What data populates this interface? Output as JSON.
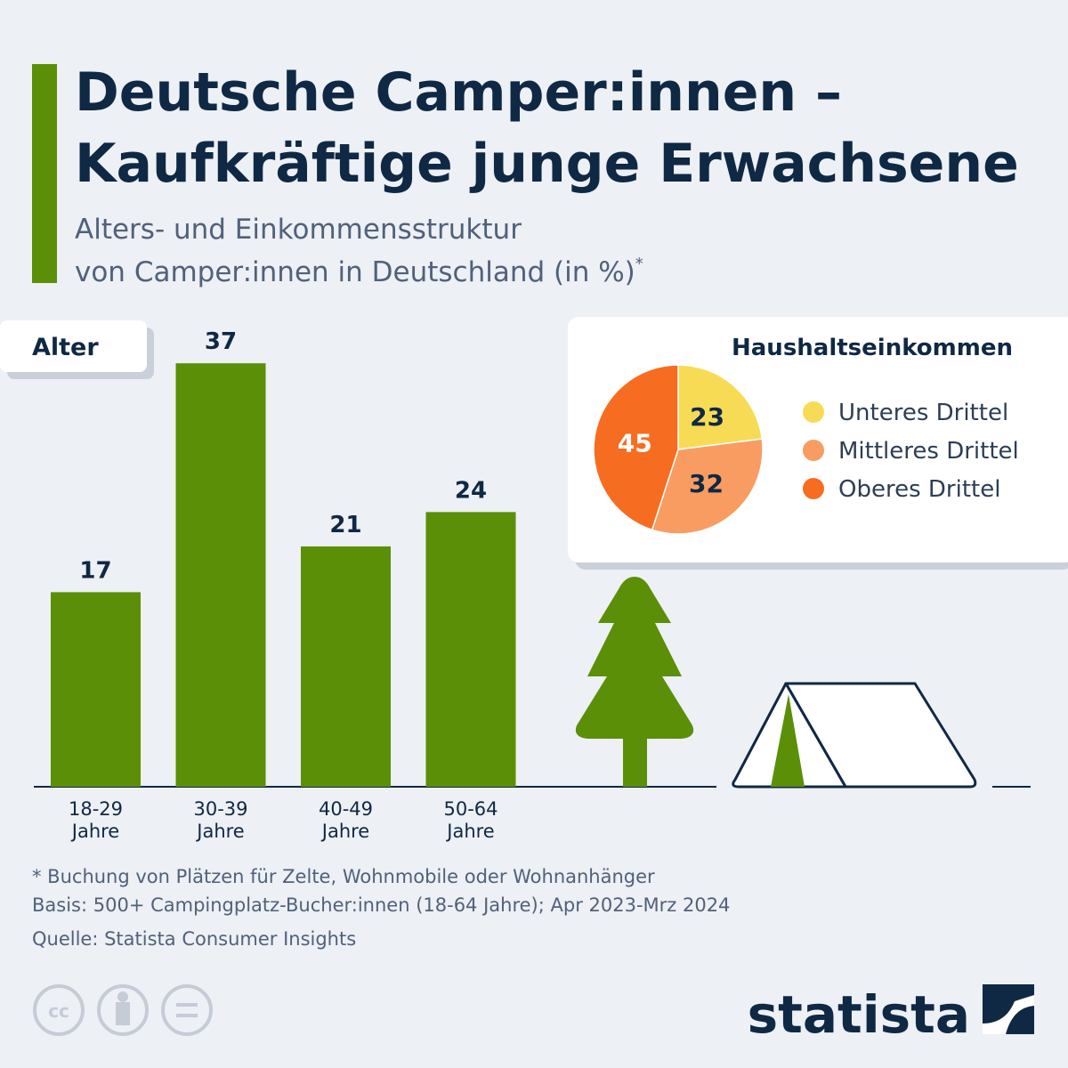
{
  "title": [
    "Deutsche Camper:innen –",
    "Kaufkräftige junge Erwachsene"
  ],
  "subtitle": [
    "Alters- und Einkommensstruktur",
    "von Camper:innen in Deutschland (in %)"
  ],
  "subtitle_mark": "*",
  "chart_data": [
    {
      "type": "bar",
      "label": "Alter",
      "categories": [
        "18-29\nJahre",
        "30-39\nJahre",
        "40-49\nJahre",
        "50-64\nJahre"
      ],
      "values": [
        17,
        37,
        21,
        24
      ],
      "color": "#5b8f08"
    },
    {
      "type": "pie",
      "title": "Haushaltseinkommen",
      "categories": [
        "Unteres Drittel",
        "Mittleres Drittel",
        "Oberes Drittel"
      ],
      "values": [
        23,
        32,
        45
      ],
      "colors": [
        "#f8db55",
        "#f99c62",
        "#f66d22"
      ]
    }
  ],
  "footer": [
    "* Buchung von Plätzen für Zelte, Wohnmobile oder Wohnanhänger",
    "Basis: 500+ Campingplatz-Bucher:innen (18-64 Jahre); Apr 2023-Mrz 2024",
    "Quelle: Statista Consumer Insights"
  ],
  "logo": "statista"
}
